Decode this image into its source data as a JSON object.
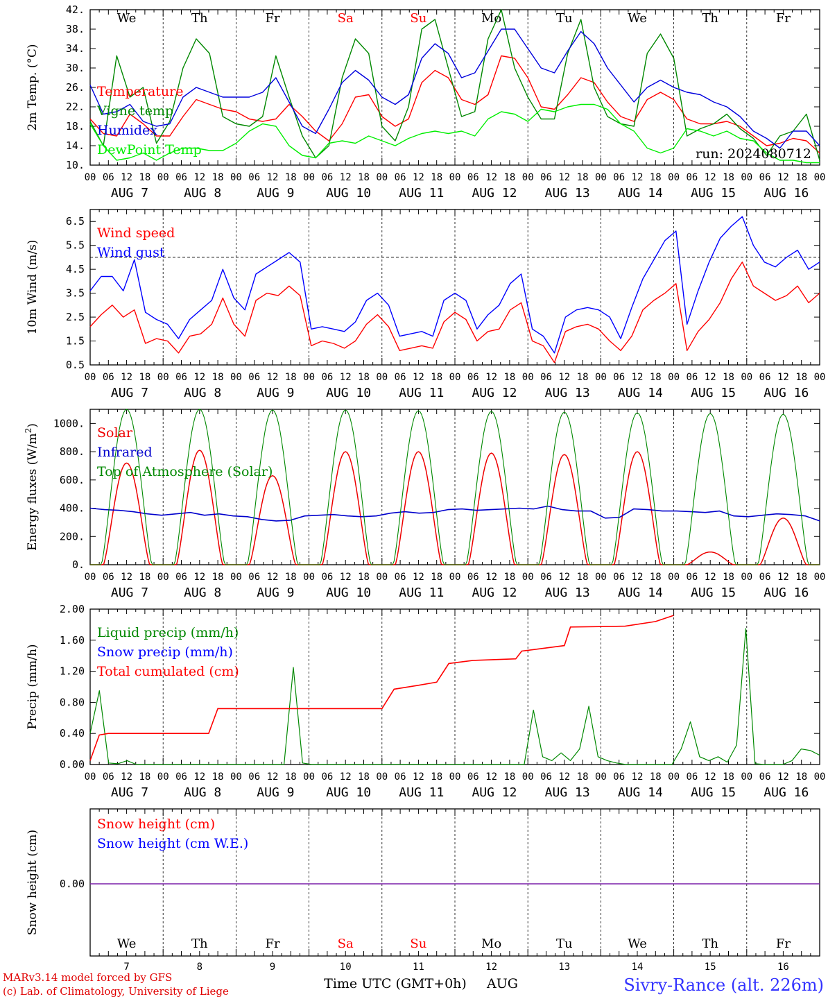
{
  "chart_data": [
    {
      "type": "line",
      "ylabel": "2m Temp. (°C)",
      "ylim": [
        10,
        42
      ],
      "yticks": [
        "10.",
        "14.",
        "18.",
        "22.",
        "26.",
        "30.",
        "34.",
        "38.",
        "42."
      ],
      "run_label": "run: 2024080712",
      "series": [
        {
          "name": "Temperature",
          "color": "#ff0000",
          "values": [
            19.5,
            16.5,
            16.0,
            20.5,
            18.5,
            16.0,
            16.0,
            20.0,
            23.5,
            22.5,
            21.5,
            21.0,
            19.5,
            19.0,
            19.5,
            22.5,
            20.0,
            17.0,
            15.0,
            18.5,
            24.0,
            24.5,
            20.0,
            18.0,
            19.5,
            27.0,
            29.5,
            28.0,
            23.5,
            22.5,
            24.5,
            32.5,
            32.0,
            28.0,
            22.0,
            21.5,
            24.5,
            28.0,
            27.0,
            23.0,
            20.0,
            19.0,
            23.5,
            25.0,
            23.5,
            19.5,
            18.5,
            18.5,
            19.0,
            18.0,
            16.0,
            14.0,
            14.5,
            15.5,
            15.0,
            12.5
          ]
        },
        {
          "name": "Vigne temp",
          "color": "#008800",
          "values": [
            19.0,
            14.0,
            32.5,
            24.0,
            26.0,
            14.5,
            19.0,
            30.0,
            36.0,
            33.0,
            20.0,
            18.5,
            18.0,
            20.0,
            32.5,
            24.0,
            16.0,
            11.5,
            14.0,
            28.0,
            36.0,
            33.0,
            18.0,
            15.0,
            22.0,
            38.0,
            40.0,
            30.0,
            20.0,
            21.0,
            36.0,
            42.0,
            30.0,
            24.0,
            19.5,
            19.5,
            33.0,
            40.0,
            26.0,
            20.0,
            18.5,
            18.0,
            33.0,
            37.0,
            32.0,
            16.0,
            17.5,
            18.5,
            20.5,
            17.5,
            15.5,
            12.0,
            16.0,
            17.0,
            20.5,
            11.0
          ]
        },
        {
          "name": "Humidex",
          "color": "#0000dd",
          "values": [
            26.5,
            20.5,
            21.0,
            22.5,
            19.0,
            18.0,
            18.5,
            24.0,
            26.0,
            25.0,
            24.0,
            24.0,
            24.0,
            25.0,
            28.0,
            23.0,
            18.0,
            16.5,
            21.5,
            27.0,
            29.5,
            27.5,
            24.0,
            22.5,
            24.5,
            32.0,
            35.0,
            33.0,
            28.0,
            29.0,
            33.5,
            38.0,
            38.0,
            34.0,
            30.0,
            29.0,
            33.5,
            37.5,
            35.0,
            30.0,
            26.5,
            23.0,
            26.0,
            27.5,
            26.0,
            25.0,
            24.5,
            23.0,
            22.0,
            20.0,
            17.0,
            15.5,
            13.5,
            17.0,
            17.0,
            14.0
          ]
        },
        {
          "name": "DewPoint Temp",
          "color": "#00ee00",
          "values": [
            18.5,
            14.0,
            11.0,
            11.5,
            12.5,
            11.0,
            12.5,
            13.5,
            13.5,
            13.0,
            13.0,
            14.5,
            17.0,
            18.5,
            18.0,
            14.0,
            12.0,
            11.5,
            14.5,
            15.0,
            14.5,
            16.0,
            15.0,
            14.0,
            15.5,
            16.5,
            17.0,
            16.5,
            17.0,
            16.0,
            19.5,
            21.0,
            20.5,
            19.0,
            21.5,
            21.0,
            22.0,
            22.5,
            22.5,
            21.5,
            18.5,
            17.0,
            13.5,
            12.5,
            13.5,
            17.5,
            17.0,
            16.0,
            17.0,
            15.5,
            15.0,
            12.5,
            11.0,
            11.0,
            10.5,
            10.5
          ]
        }
      ]
    },
    {
      "type": "line",
      "ylabel": "10m Wind (m/s)",
      "ylim": [
        0.5,
        7.0
      ],
      "yticks": [
        "0.5",
        "1.5",
        "2.5",
        "3.5",
        "4.5",
        "5.5",
        "6.5"
      ],
      "reference_line": 5.0,
      "series": [
        {
          "name": "Wind speed",
          "color": "#ff0000",
          "values": [
            2.1,
            2.6,
            3.0,
            2.5,
            2.8,
            1.4,
            1.6,
            1.5,
            1.0,
            1.7,
            1.8,
            2.2,
            3.3,
            2.2,
            1.7,
            3.2,
            3.5,
            3.4,
            3.8,
            3.4,
            1.3,
            1.5,
            1.4,
            1.2,
            1.5,
            2.2,
            2.6,
            2.1,
            1.1,
            1.2,
            1.3,
            1.2,
            2.3,
            2.7,
            2.4,
            1.5,
            1.9,
            2.0,
            2.8,
            3.1,
            1.5,
            1.3,
            0.6,
            1.9,
            2.1,
            2.2,
            2.0,
            1.5,
            1.1,
            1.7,
            2.8,
            3.2,
            3.5,
            3.9,
            1.1,
            1.9,
            2.4,
            3.1,
            4.1,
            4.8,
            3.8,
            3.5,
            3.2,
            3.4,
            3.8,
            3.1,
            3.5
          ]
        },
        {
          "name": "Wind gust",
          "color": "#0000ff",
          "values": [
            3.6,
            4.2,
            4.2,
            3.6,
            4.9,
            2.7,
            2.4,
            2.2,
            1.6,
            2.4,
            2.8,
            3.2,
            4.5,
            3.3,
            2.8,
            4.3,
            4.6,
            4.9,
            5.2,
            4.8,
            2.0,
            2.1,
            2.0,
            1.9,
            2.3,
            3.2,
            3.5,
            3.0,
            1.7,
            1.8,
            1.9,
            1.7,
            3.2,
            3.5,
            3.2,
            2.0,
            2.6,
            3.0,
            3.9,
            4.3,
            2.0,
            1.7,
            1.0,
            2.5,
            2.8,
            2.9,
            2.8,
            2.5,
            1.6,
            2.9,
            4.1,
            4.9,
            5.7,
            6.1,
            2.2,
            3.6,
            4.8,
            5.8,
            6.3,
            6.7,
            5.5,
            4.8,
            4.6,
            5.0,
            5.3,
            4.5,
            4.8
          ]
        }
      ]
    },
    {
      "type": "line",
      "ylabel": "Energy fluxes (W/m²)",
      "ylim": [
        0,
        1100
      ],
      "yticks": [
        "0.",
        "200.",
        "400.",
        "600.",
        "800.",
        "1000."
      ],
      "series": [
        {
          "name": "Solar",
          "color": "#ee0000",
          "peaks": [
            720,
            810,
            630,
            800,
            800,
            790,
            780,
            800,
            90,
            330
          ]
        },
        {
          "name": "Infrared",
          "color": "#0000cc",
          "values": [
            400,
            390,
            385,
            375,
            360,
            350,
            360,
            370,
            350,
            360,
            345,
            340,
            320,
            310,
            315,
            345,
            350,
            355,
            345,
            340,
            345,
            365,
            375,
            365,
            370,
            390,
            395,
            385,
            390,
            395,
            400,
            395,
            415,
            390,
            380,
            380,
            330,
            335,
            395,
            390,
            380,
            380,
            375,
            370,
            380,
            345,
            340,
            350,
            360,
            355,
            345,
            310
          ]
        },
        {
          "name": "Top of Atmosphere (Solar)",
          "color": "#008800",
          "peaks": [
            1100,
            1100,
            1095,
            1095,
            1090,
            1085,
            1080,
            1075,
            1070,
            1065
          ]
        }
      ]
    },
    {
      "type": "line",
      "ylabel": "Precip (mm/h)",
      "ylim": [
        0,
        2.0
      ],
      "yticks": [
        "0.00",
        "0.40",
        "0.80",
        "1.20",
        "1.60",
        "2.00"
      ],
      "series": [
        {
          "name": "Liquid precip (mm/h)",
          "color": "#008800",
          "values": [
            0.4,
            0.95,
            0.02,
            0.01,
            0.05,
            0.0,
            0.0,
            0.0,
            0.0,
            0.0,
            0.0,
            0.0,
            0.0,
            0.0,
            0.0,
            0.0,
            0.0,
            0.0,
            0.0,
            0.0,
            0.0,
            0.0,
            1.25,
            0.02,
            0.0,
            0.0,
            0.0,
            0.0,
            0.0,
            0.0,
            0.0,
            0.0,
            0.0,
            0.0,
            0.0,
            0.0,
            0.0,
            0.0,
            0.0,
            0.0,
            0.0,
            0.0,
            0.0,
            0.0,
            0.0,
            0.0,
            0.0,
            0.0,
            0.7,
            0.1,
            0.05,
            0.15,
            0.05,
            0.2,
            0.75,
            0.1,
            0.05,
            0.02,
            0.0,
            0.0,
            0.0,
            0.0,
            0.0,
            0.0,
            0.2,
            0.55,
            0.1,
            0.05,
            0.1,
            0.03,
            0.25,
            1.75,
            0.01,
            0.0,
            0.0,
            0.0,
            0.05,
            0.2,
            0.18,
            0.12
          ]
        },
        {
          "name": "Snow precip (mm/h)",
          "color": "#0000ff",
          "values": []
        },
        {
          "name": "Total cumulated (cm)",
          "color": "#ff0000",
          "points": [
            [
              0,
              0.05
            ],
            [
              3,
              0.38
            ],
            [
              6,
              0.4
            ],
            [
              39,
              0.4
            ],
            [
              42,
              0.72
            ],
            [
              96,
              0.72
            ],
            [
              100,
              0.97
            ],
            [
              108,
              1.02
            ],
            [
              114,
              1.06
            ],
            [
              118,
              1.3
            ],
            [
              126,
              1.34
            ],
            [
              140,
              1.36
            ],
            [
              142,
              1.46
            ],
            [
              156,
              1.53
            ],
            [
              158,
              1.77
            ],
            [
              176,
              1.78
            ],
            [
              186,
              1.84
            ],
            [
              192,
              1.92
            ]
          ]
        }
      ]
    },
    {
      "type": "line",
      "ylabel": "Snow height (cm)",
      "yticks": [
        "0.00"
      ],
      "series": [
        {
          "name": "Snow height (cm)",
          "color": "#ff0000",
          "values": [
            0
          ]
        },
        {
          "name": "Snow height (cm W.E.)",
          "color": "#0000ff",
          "values": [
            0
          ]
        }
      ]
    }
  ],
  "x_axis": {
    "hour_labels": [
      "00",
      "06",
      "12",
      "18"
    ],
    "final_hour_label": "00",
    "days": [
      "AUG  7",
      "AUG  8",
      "AUG  9",
      "AUG 10",
      "AUG 11",
      "AUG 12",
      "AUG 13",
      "AUG 14",
      "AUG 15",
      "AUG 16"
    ],
    "weekdays": [
      {
        "label": "We",
        "color": "#000000"
      },
      {
        "label": "Th",
        "color": "#000000"
      },
      {
        "label": "Fr",
        "color": "#000000"
      },
      {
        "label": "Sa",
        "color": "#ff0000"
      },
      {
        "label": "Su",
        "color": "#ff0000"
      },
      {
        "label": "Mo",
        "color": "#000000"
      },
      {
        "label": "Tu",
        "color": "#000000"
      },
      {
        "label": "We",
        "color": "#000000"
      },
      {
        "label": "Th",
        "color": "#000000"
      },
      {
        "label": "Fr",
        "color": "#000000"
      }
    ],
    "bottom_day_numbers": [
      "7",
      "8",
      "9",
      "10",
      "11",
      "12",
      "13",
      "14",
      "15",
      "16"
    ],
    "xlabel": "Time UTC (GMT+0h)",
    "month": "AUG"
  },
  "footer": {
    "model_line": "MARv3.14 model forced by GFS",
    "credit_line": "(c) Lab. of Climatology, University of Liege",
    "station": "Sivry-Rance (alt. 226m)",
    "station_color": "#3333ff"
  }
}
